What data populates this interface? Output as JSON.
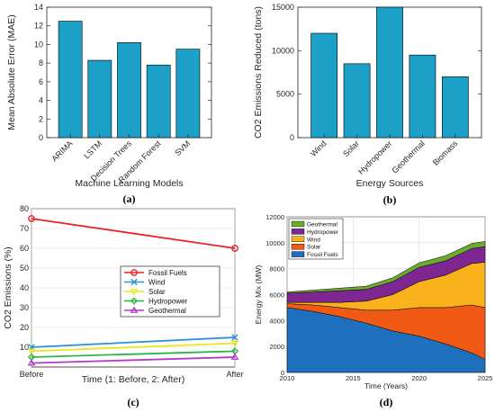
{
  "chart_data": [
    {
      "type": "bar",
      "panel_label": "(a)",
      "xlabel": "Machine Learning Models",
      "ylabel": "Mean Absolute Error (MAE)",
      "categories": [
        "ARIMA",
        "LSTM",
        "Decision Trees",
        "Random Forest",
        "SVM"
      ],
      "values": [
        12.5,
        8.3,
        10.2,
        7.8,
        9.5
      ],
      "ylim": [
        0,
        14
      ],
      "yticks": [
        0,
        2,
        4,
        6,
        8,
        10,
        12,
        14
      ],
      "bar_color": "#1ca0c8"
    },
    {
      "type": "bar",
      "panel_label": "(b)",
      "xlabel": "Energy Sources",
      "ylabel": "CO2 Emissions Reduced (tons)",
      "categories": [
        "Wind",
        "Solar",
        "Hydropower",
        "Geothermal",
        "Biomass"
      ],
      "values": [
        12000,
        8500,
        15000,
        9500,
        7000
      ],
      "ylim": [
        0,
        15000
      ],
      "yticks": [
        0,
        5000,
        10000,
        15000
      ],
      "bar_color": "#1ca0c8"
    },
    {
      "type": "line",
      "panel_label": "(c)",
      "xlabel": "Time (1: Before, 2: After)",
      "ylabel": "CO2 Emissions (%)",
      "categories": [
        "Before",
        "After"
      ],
      "ylim": [
        0,
        80
      ],
      "yticks": [
        10,
        20,
        30,
        40,
        50,
        60,
        70,
        80
      ],
      "legend_position": "center-right",
      "series": [
        {
          "name": "Fossil Fuels",
          "values": [
            75,
            60
          ],
          "color": "#e8212b",
          "marker": "circle"
        },
        {
          "name": "Wind",
          "values": [
            10,
            15
          ],
          "color": "#2f8fd8",
          "marker": "x"
        },
        {
          "name": "Solar",
          "values": [
            8,
            12
          ],
          "color": "#e8e81e",
          "marker": "triangle-down"
        },
        {
          "name": "Hydropower",
          "values": [
            5,
            8
          ],
          "color": "#2fb64a",
          "marker": "diamond"
        },
        {
          "name": "Geothermal",
          "values": [
            2,
            5
          ],
          "color": "#b03cc8",
          "marker": "triangle-up"
        }
      ]
    },
    {
      "type": "area",
      "panel_label": "(d)",
      "xlabel": "Time (Years)",
      "ylabel": "Energy Mix (MW)",
      "x": [
        2010,
        2012,
        2014,
        2016,
        2018,
        2020,
        2022,
        2024,
        2025
      ],
      "xlim": [
        2010,
        2025
      ],
      "xticks": [
        2010,
        2015,
        2020,
        2025
      ],
      "ylim": [
        0,
        12000
      ],
      "yticks": [
        0,
        2000,
        4000,
        6000,
        8000,
        10000,
        12000
      ],
      "legend_position": "top-left",
      "legend_order": [
        "Geothermal",
        "Hydropower",
        "Wind",
        "Solar",
        "Fossil Fuels"
      ],
      "series": [
        {
          "name": "Fossil Fuels",
          "values": [
            5000,
            4700,
            4300,
            3800,
            3200,
            2800,
            2200,
            1500,
            1000
          ],
          "color": "#1f6fbf"
        },
        {
          "name": "Solar",
          "values": [
            300,
            500,
            700,
            1000,
            1600,
            2200,
            2800,
            3700,
            4000
          ],
          "color": "#f05a14"
        },
        {
          "name": "Wind",
          "values": [
            100,
            200,
            400,
            700,
            1200,
            2000,
            2500,
            3200,
            3500
          ],
          "color": "#f9b21b"
        },
        {
          "name": "Hydropower",
          "values": [
            700,
            800,
            900,
            900,
            1000,
            1100,
            1100,
            1150,
            1200
          ],
          "color": "#7e2792"
        },
        {
          "name": "Geothermal",
          "values": [
            100,
            150,
            200,
            250,
            300,
            350,
            400,
            400,
            400
          ],
          "color": "#6aaa2e"
        }
      ]
    }
  ]
}
